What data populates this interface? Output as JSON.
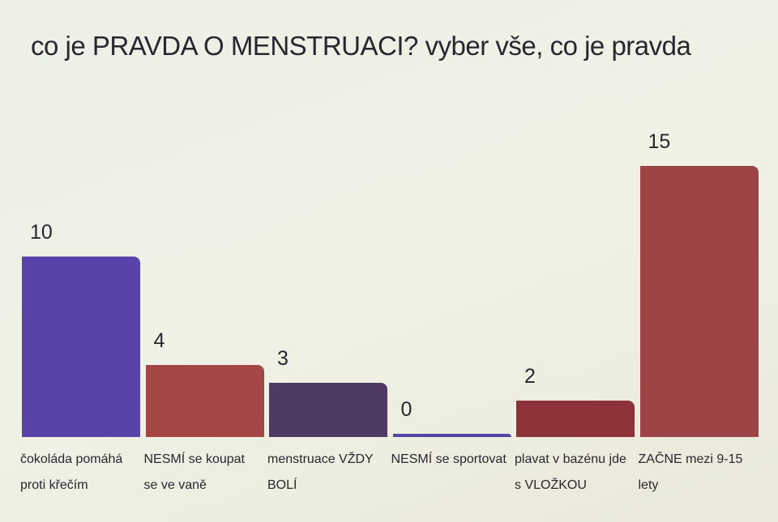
{
  "chart_data": {
    "type": "bar",
    "title": "co je PRAVDA O MENSTRUACI? vyber vše, co je pravda",
    "categories": [
      "čokoláda pomáhá proti křečím",
      "NESMÍ se koupat se ve vaně",
      "menstruace VŽDY BOLÍ",
      "NESMÍ se sportovat",
      "plavat v bazénu jde s VLOŽKOU",
      "ZAČNE mezi 9-15 lety"
    ],
    "values": [
      10,
      4,
      3,
      0,
      2,
      15
    ],
    "colors": [
      "#5a43a8",
      "#a54646",
      "#4f3a63",
      "#5546a6",
      "#8c3238",
      "#9c4446"
    ]
  }
}
